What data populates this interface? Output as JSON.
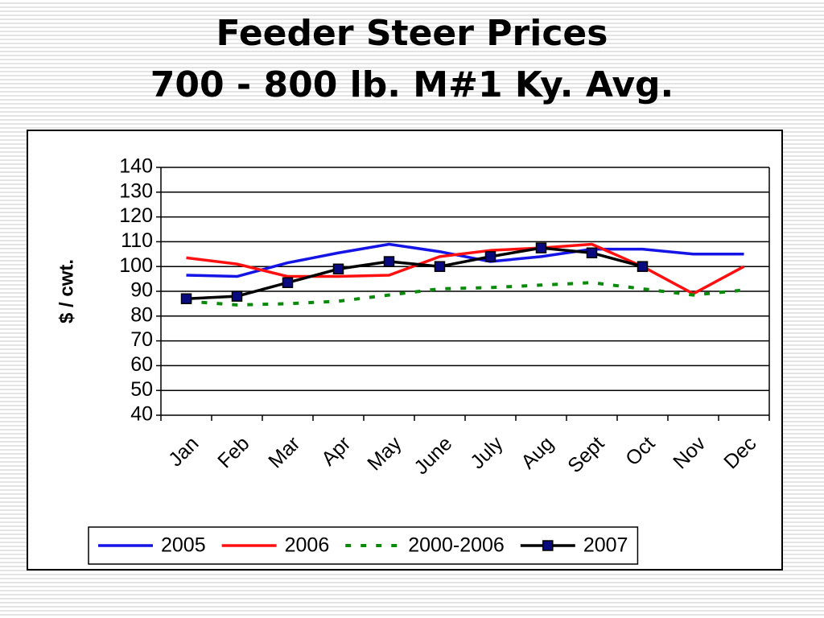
{
  "chart_data": {
    "type": "line",
    "title": "Feeder Steer Prices",
    "subtitle": "700 - 800 lb. M#1 Ky. Avg.",
    "y_label": "$ / cwt.",
    "categories": [
      "Jan",
      "Feb",
      "Mar",
      "Apr",
      "May",
      "June",
      "July",
      "Aug",
      "Sept",
      "Oct",
      "Nov",
      "Dec"
    ],
    "series": [
      {
        "name": "2005",
        "color": "#1414e6",
        "dashed": false,
        "marker": "none",
        "values": [
          96.5,
          96,
          101.5,
          105.5,
          109,
          106,
          102,
          104,
          107,
          107,
          105,
          105
        ]
      },
      {
        "name": "2006",
        "color": "#ff1010",
        "dashed": false,
        "marker": "none",
        "values": [
          103.5,
          101,
          96,
          96,
          96.5,
          104,
          106.5,
          107.5,
          109,
          100,
          89,
          100
        ]
      },
      {
        "name": "2000-2006",
        "color": "#0a8a0a",
        "dashed": true,
        "marker": "none",
        "values": [
          86,
          84.5,
          85,
          86,
          88.5,
          91,
          91.5,
          92.5,
          93.5,
          91,
          88.5,
          90.5
        ]
      },
      {
        "name": "2007",
        "color": "#000000",
        "dashed": false,
        "marker": "square",
        "marker_color": "#0a0a80",
        "values": [
          87,
          88,
          93.5,
          99,
          102,
          100,
          104,
          107.5,
          105.5,
          100,
          null,
          null
        ]
      }
    ],
    "ylim": [
      40,
      140
    ],
    "yticks": [
      40,
      50,
      60,
      70,
      80,
      90,
      100,
      110,
      120,
      130,
      140
    ],
    "grid": true,
    "legend": "bottom"
  }
}
